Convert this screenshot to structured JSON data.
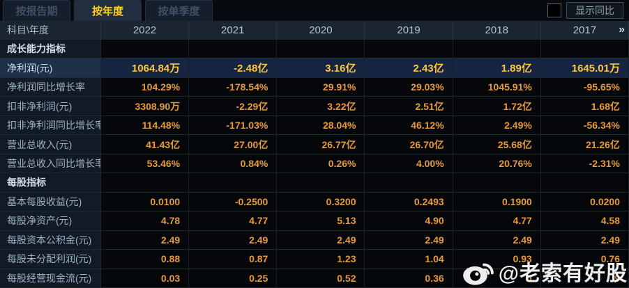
{
  "tabs": [
    {
      "label": "按报告期",
      "active": false
    },
    {
      "label": "按年度",
      "active": true
    },
    {
      "label": "按单季度",
      "active": false
    }
  ],
  "controls": {
    "show_yoy_label": "显示同比",
    "checkbox_checked": false
  },
  "table": {
    "corner_label": "科目\\年度",
    "years": [
      "2022",
      "2021",
      "2020",
      "2019",
      "2018",
      "2017"
    ],
    "more_icon": "»",
    "rows": [
      {
        "type": "section",
        "label": "成长能力指标"
      },
      {
        "type": "data",
        "label": "净利润(元)",
        "highlight": true,
        "values": [
          "1064.84万",
          "-2.48亿",
          "3.16亿",
          "2.43亿",
          "1.89亿",
          "1645.01万"
        ]
      },
      {
        "type": "data",
        "label": "净利润同比增长率",
        "values": [
          "104.29%",
          "-178.54%",
          "29.91%",
          "29.03%",
          "1045.91%",
          "-95.65%"
        ]
      },
      {
        "type": "data",
        "label": "扣非净利润(元)",
        "values": [
          "3308.90万",
          "-2.29亿",
          "3.22亿",
          "2.51亿",
          "1.72亿",
          "1.68亿"
        ]
      },
      {
        "type": "data",
        "label": "扣非净利润同比增长率",
        "values": [
          "114.48%",
          "-171.03%",
          "28.04%",
          "46.12%",
          "2.49%",
          "-56.34%"
        ]
      },
      {
        "type": "data",
        "label": "营业总收入(元)",
        "values": [
          "41.43亿",
          "27.00亿",
          "26.77亿",
          "26.70亿",
          "25.68亿",
          "21.26亿"
        ]
      },
      {
        "type": "data",
        "label": "营业总收入同比增长率",
        "values": [
          "53.46%",
          "0.84%",
          "0.26%",
          "4.00%",
          "20.76%",
          "-2.31%"
        ]
      },
      {
        "type": "section",
        "label": "每股指标"
      },
      {
        "type": "data",
        "label": "基本每股收益(元)",
        "values": [
          "0.0100",
          "-0.2500",
          "0.3200",
          "0.2493",
          "0.1900",
          "0.0200"
        ]
      },
      {
        "type": "data",
        "label": "每股净资产(元)",
        "values": [
          "4.78",
          "4.77",
          "5.13",
          "4.90",
          "4.77",
          "4.58"
        ]
      },
      {
        "type": "data",
        "label": "每股资本公积金(元)",
        "values": [
          "2.49",
          "2.49",
          "2.49",
          "2.49",
          "2.49",
          "2.49"
        ]
      },
      {
        "type": "data",
        "label": "每股未分配利润(元)",
        "values": [
          "0.88",
          "0.87",
          "1.23",
          "1.04",
          "0.93",
          "0.76"
        ]
      },
      {
        "type": "data",
        "label": "每股经营现金流(元)",
        "values": [
          "0.03",
          "0.25",
          "0.52",
          "0.36",
          "0",
          "9"
        ]
      }
    ]
  },
  "watermark": {
    "text": "@老索有好股",
    "icon": "weibo-icon"
  },
  "colors": {
    "value_text": "#e89a3b",
    "highlight_value_text": "#ffc63e",
    "active_tab_text": "#ffd21e",
    "highlight_row_bg": "#152541"
  }
}
